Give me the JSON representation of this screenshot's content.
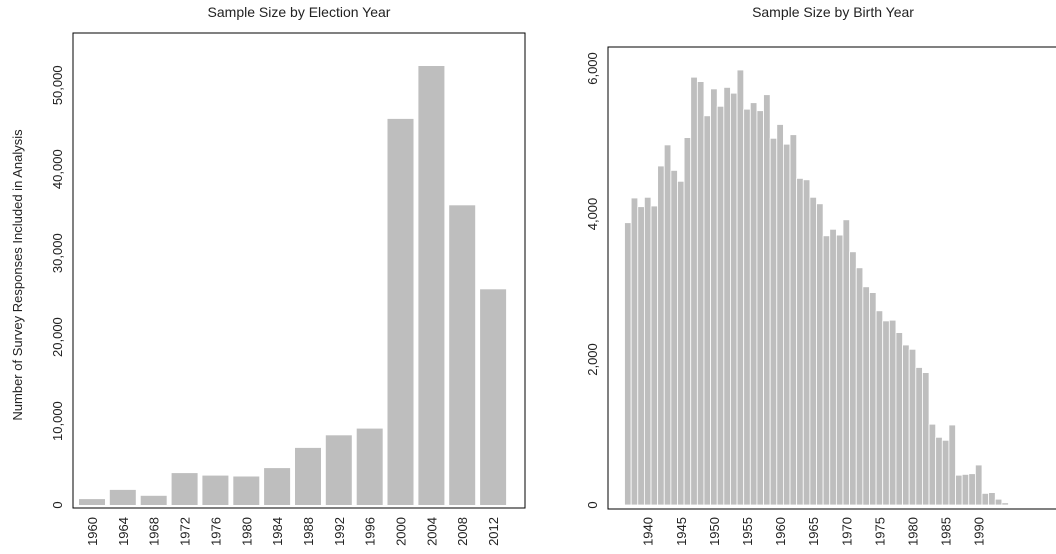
{
  "chart_data": [
    {
      "type": "bar",
      "title": "Sample Size by Election Year",
      "xlabel": "",
      "ylabel": "Number of Survey Responses Included in Analysis",
      "ylim": [
        0,
        55000
      ],
      "yticks": [
        0,
        10000,
        20000,
        30000,
        40000,
        50000
      ],
      "ytick_labels": [
        "0",
        "10,000",
        "20,000",
        "30,000",
        "40,000",
        "50,000"
      ],
      "bar_color": "#bebebe",
      "categories": [
        "1960",
        "1964",
        "1968",
        "1972",
        "1976",
        "1980",
        "1984",
        "1988",
        "1992",
        "1996",
        "2000",
        "2004",
        "2008",
        "2012"
      ],
      "values": [
        700,
        1800,
        1100,
        3800,
        3500,
        3400,
        4400,
        6800,
        8300,
        9100,
        46000,
        52300,
        35700,
        25700
      ]
    },
    {
      "type": "bar",
      "title": "Sample Size by Birth Year",
      "xlabel": "",
      "ylabel": "",
      "ylim": [
        0,
        6300
      ],
      "yticks": [
        0,
        2000,
        4000,
        6000
      ],
      "ytick_labels": [
        "0",
        "2,000",
        "4,000",
        "6,000"
      ],
      "xticks": [
        1940,
        1945,
        1950,
        1955,
        1960,
        1965,
        1970,
        1975,
        1980,
        1985,
        1990
      ],
      "xtick_labels": [
        "1940",
        "1945",
        "1950",
        "1955",
        "1960",
        "1965",
        "1970",
        "1975",
        "1980",
        "1985",
        "1990"
      ],
      "bar_color": "#bebebe",
      "x": [
        1937,
        1938,
        1939,
        1940,
        1941,
        1942,
        1943,
        1944,
        1945,
        1946,
        1947,
        1948,
        1949,
        1950,
        1951,
        1952,
        1953,
        1954,
        1955,
        1956,
        1957,
        1958,
        1959,
        1960,
        1961,
        1962,
        1963,
        1964,
        1965,
        1966,
        1967,
        1968,
        1969,
        1970,
        1971,
        1972,
        1973,
        1974,
        1975,
        1976,
        1977,
        1978,
        1979,
        1980,
        1981,
        1982,
        1983,
        1984,
        1985,
        1986,
        1987,
        1988,
        1989,
        1990,
        1991,
        1992,
        1993,
        1994
      ],
      "values": [
        3880,
        4220,
        4100,
        4230,
        4110,
        4660,
        4950,
        4600,
        4450,
        5050,
        5880,
        5820,
        5350,
        5720,
        5480,
        5740,
        5660,
        5980,
        5440,
        5530,
        5420,
        5640,
        5040,
        5230,
        4960,
        5090,
        4490,
        4470,
        4230,
        4140,
        3700,
        3790,
        3710,
        3920,
        3480,
        3260,
        3000,
        2920,
        2670,
        2530,
        2540,
        2370,
        2200,
        2140,
        1890,
        1820,
        1110,
        930,
        890,
        1100,
        410,
        420,
        430,
        550,
        160,
        170,
        80,
        30
      ]
    }
  ]
}
